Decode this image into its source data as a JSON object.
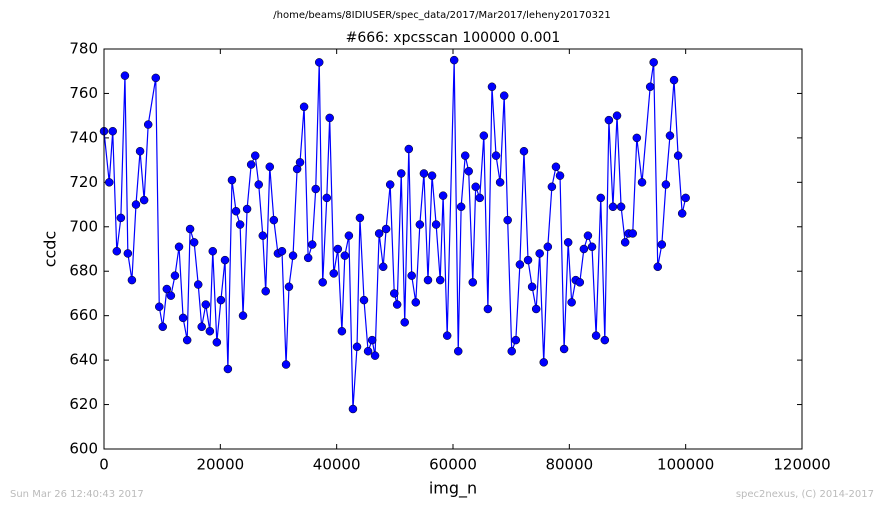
{
  "chart_data": {
    "type": "line",
    "suptitle": "/home/beams/8IDIUSER/spec_data/2017/Mar2017/leheny20170321",
    "title": "#666: xpcsscan 100000 0.001",
    "xlabel": "img_n",
    "ylabel": "ccdc",
    "footer_left": "Sun Mar 26 12:40:43 2017",
    "footer_right": "spec2nexus, (C) 2014-2017",
    "xlim": [
      0,
      120000
    ],
    "xticks": [
      0,
      20000,
      40000,
      60000,
      80000,
      100000,
      120000
    ],
    "ylim": [
      600,
      780
    ],
    "yticks": [
      600,
      620,
      640,
      660,
      680,
      700,
      720,
      740,
      760,
      780
    ],
    "grid": false,
    "x": [
      0,
      900,
      1500,
      2200,
      2900,
      3600,
      4100,
      4800,
      5500,
      6200,
      6900,
      7600,
      8900,
      9500,
      10100,
      10800,
      11500,
      12200,
      12900,
      13600,
      14300,
      14800,
      15500,
      16200,
      16800,
      17500,
      18200,
      18700,
      19400,
      20100,
      20800,
      21300,
      22000,
      22700,
      23400,
      23900,
      24600,
      25300,
      26000,
      26600,
      27300,
      27800,
      28500,
      29200,
      29900,
      30600,
      31300,
      31800,
      32500,
      33200,
      33700,
      34400,
      35100,
      35800,
      36400,
      37000,
      37600,
      38300,
      38800,
      39500,
      40200,
      40900,
      41400,
      42100,
      42800,
      43500,
      44000,
      44700,
      45400,
      46100,
      46600,
      47300,
      48000,
      48500,
      49200,
      49900,
      50400,
      51100,
      51700,
      52400,
      52900,
      53600,
      54300,
      55000,
      55700,
      56400,
      57100,
      57800,
      58300,
      59000,
      60200,
      60900,
      61400,
      62100,
      62700,
      63400,
      63900,
      64600,
      65300,
      66000,
      66700,
      67400,
      68100,
      68800,
      69400,
      70100,
      70800,
      71500,
      72200,
      72900,
      73600,
      74300,
      74900,
      75600,
      76300,
      77000,
      77700,
      78400,
      79100,
      79800,
      80400,
      81100,
      81800,
      82500,
      83200,
      83900,
      84600,
      85400,
      86100,
      86800,
      87500,
      88200,
      88900,
      89600,
      90200,
      90900,
      91600,
      92500,
      93900,
      94500,
      95200,
      95900,
      96600,
      97300,
      98000,
      98700,
      99400,
      100000
    ],
    "series": [
      {
        "name": "ccdc",
        "color": "#0000ff",
        "values": [
          743,
          720,
          743,
          689,
          704,
          768,
          688,
          676,
          710,
          734,
          712,
          746,
          767,
          664,
          655,
          672,
          669,
          678,
          691,
          659,
          649,
          699,
          693,
          674,
          655,
          665,
          653,
          689,
          648,
          667,
          685,
          636,
          721,
          707,
          701,
          660,
          708,
          728,
          732,
          719,
          696,
          671,
          727,
          703,
          688,
          689,
          638,
          673,
          687,
          726,
          729,
          754,
          686,
          692,
          717,
          774,
          675,
          713,
          749,
          679,
          690,
          653,
          687,
          696,
          618,
          646,
          704,
          667,
          644,
          649,
          642,
          697,
          682,
          699,
          719,
          670,
          665,
          724,
          657,
          735,
          678,
          666,
          701,
          724,
          676,
          723,
          701,
          676,
          714,
          651,
          775,
          644,
          709,
          732,
          725,
          675,
          718,
          713,
          741,
          663,
          763,
          732,
          720,
          759,
          703,
          644,
          649,
          683,
          734,
          685,
          673,
          663,
          688,
          639,
          691,
          718,
          727,
          723,
          645,
          693,
          666,
          676,
          675,
          690,
          696,
          691,
          651,
          713,
          649,
          748,
          709,
          750,
          709,
          693,
          697,
          697,
          740,
          720,
          763,
          774,
          682,
          692,
          719,
          741,
          766,
          732,
          706,
          713
        ]
      }
    ]
  }
}
